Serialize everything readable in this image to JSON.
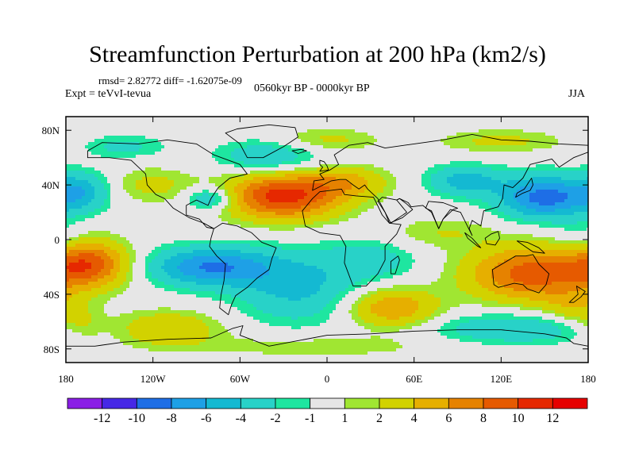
{
  "header": {
    "title": "Streamfunction Perturbation at 200 hPa (km2/s)",
    "stats": "rmsd= 2.82772 diff= -1.62075e-09",
    "experiment": "Expt = teVvI-tevua",
    "period": "0560kyr BP - 0000kyr BP",
    "season": "JJA"
  },
  "chart_data": {
    "type": "heatmap",
    "title": "Streamfunction Perturbation at 200 hPa (km2/s)",
    "xlabel": "",
    "ylabel": "",
    "xlim": [
      -180,
      180
    ],
    "ylim": [
      -90,
      90
    ],
    "x_ticks": [
      {
        "value": -180,
        "label": "180"
      },
      {
        "value": -120,
        "label": "120W"
      },
      {
        "value": -60,
        "label": "60W"
      },
      {
        "value": 0,
        "label": "0"
      },
      {
        "value": 60,
        "label": "60E"
      },
      {
        "value": 120,
        "label": "120E"
      },
      {
        "value": 180,
        "label": "180"
      }
    ],
    "y_ticks": [
      {
        "value": 80,
        "label": "80N"
      },
      {
        "value": 40,
        "label": "40N"
      },
      {
        "value": 0,
        "label": "0"
      },
      {
        "value": -40,
        "label": "40S"
      },
      {
        "value": -80,
        "label": "80S"
      }
    ],
    "colorbar": {
      "levels": [
        "-12",
        "-10",
        "-8",
        "-6",
        "-4",
        "-2",
        "-1",
        "1",
        "2",
        "4",
        "6",
        "8",
        "10",
        "12"
      ],
      "colors": [
        "#8a1ee6",
        "#4628e6",
        "#1e6ee6",
        "#1ea0e6",
        "#14b9d2",
        "#28d2c8",
        "#1ee6a0",
        "#e6e6e6",
        "#a0e632",
        "#d2d200",
        "#e6af00",
        "#e68200",
        "#e65a00",
        "#e62800",
        "#e60000"
      ]
    },
    "features": [
      {
        "lon": -30,
        "lat": 32,
        "val": 11,
        "sx": 28,
        "sy": 12
      },
      {
        "lon": 15,
        "lat": 42,
        "val": 4,
        "sx": 20,
        "sy": 8
      },
      {
        "lon": 150,
        "lat": 31,
        "val": -9,
        "sx": 22,
        "sy": 11
      },
      {
        "lon": 95,
        "lat": 43,
        "val": -5,
        "sx": 18,
        "sy": 8
      },
      {
        "lon": -80,
        "lat": 30,
        "val": -5,
        "sx": 12,
        "sy": 6
      },
      {
        "lon": -170,
        "lat": 35,
        "val": -5,
        "sx": 14,
        "sy": 10
      },
      {
        "lon": -40,
        "lat": 60,
        "val": -4,
        "sx": 25,
        "sy": 9
      },
      {
        "lon": 0,
        "lat": 73,
        "val": 2.5,
        "sx": 25,
        "sy": 6
      },
      {
        "lon": 120,
        "lat": 72,
        "val": 2.5,
        "sx": 30,
        "sy": 6
      },
      {
        "lon": -140,
        "lat": 68,
        "val": -2.5,
        "sx": 20,
        "sy": 6
      },
      {
        "lon": -120,
        "lat": 40,
        "val": 2.5,
        "sx": 20,
        "sy": 9
      },
      {
        "lon": -165,
        "lat": -18,
        "val": 9,
        "sx": 20,
        "sy": 12
      },
      {
        "lon": -80,
        "lat": -20,
        "val": -8,
        "sx": 30,
        "sy": 10
      },
      {
        "lon": -20,
        "lat": -35,
        "val": -4.5,
        "sx": 30,
        "sy": 18
      },
      {
        "lon": 30,
        "lat": -15,
        "val": -3,
        "sx": 22,
        "sy": 10
      },
      {
        "lon": 45,
        "lat": -50,
        "val": 6,
        "sx": 22,
        "sy": 10
      },
      {
        "lon": 140,
        "lat": -25,
        "val": 9,
        "sx": 30,
        "sy": 14
      },
      {
        "lon": 130,
        "lat": -65,
        "val": -4,
        "sx": 40,
        "sy": 8
      },
      {
        "lon": -110,
        "lat": -65,
        "val": 4,
        "sx": 25,
        "sy": 9
      },
      {
        "lon": 170,
        "lat": -50,
        "val": 3,
        "sx": 15,
        "sy": 10
      },
      {
        "lon": -170,
        "lat": -62,
        "val": 2.5,
        "sx": 12,
        "sy": 8
      },
      {
        "lon": -10,
        "lat": -78,
        "val": 1.8,
        "sx": 60,
        "sy": 6
      },
      {
        "lon": 80,
        "lat": 5,
        "val": 2,
        "sx": 25,
        "sy": 8
      },
      {
        "lon": 175,
        "lat": 0,
        "val": -2,
        "sx": 12,
        "sy": 10
      }
    ],
    "land": [
      {
        "name": "north-america",
        "points": [
          [
            -165,
            65
          ],
          [
            -155,
            71
          ],
          [
            -130,
            70
          ],
          [
            -110,
            73
          ],
          [
            -90,
            70
          ],
          [
            -78,
            62
          ],
          [
            -60,
            55
          ],
          [
            -55,
            48
          ],
          [
            -67,
            45
          ],
          [
            -75,
            38
          ],
          [
            -80,
            30
          ],
          [
            -82,
            25
          ],
          [
            -90,
            29
          ],
          [
            -97,
            25
          ],
          [
            -97,
            18
          ],
          [
            -88,
            15
          ],
          [
            -83,
            9
          ],
          [
            -78,
            8
          ],
          [
            -85,
            12
          ],
          [
            -95,
            16
          ],
          [
            -106,
            23
          ],
          [
            -112,
            30
          ],
          [
            -118,
            33
          ],
          [
            -124,
            40
          ],
          [
            -125,
            48
          ],
          [
            -135,
            58
          ],
          [
            -150,
            60
          ],
          [
            -165,
            60
          ]
        ]
      },
      {
        "name": "greenland",
        "points": [
          [
            -55,
            60
          ],
          [
            -44,
            60
          ],
          [
            -30,
            68
          ],
          [
            -20,
            75
          ],
          [
            -22,
            82
          ],
          [
            -40,
            84
          ],
          [
            -62,
            81
          ],
          [
            -70,
            78
          ],
          [
            -60,
            70
          ]
        ]
      },
      {
        "name": "south-america",
        "points": [
          [
            -78,
            8
          ],
          [
            -72,
            12
          ],
          [
            -62,
            10
          ],
          [
            -52,
            5
          ],
          [
            -45,
            -2
          ],
          [
            -35,
            -6
          ],
          [
            -38,
            -14
          ],
          [
            -40,
            -22
          ],
          [
            -48,
            -28
          ],
          [
            -55,
            -35
          ],
          [
            -63,
            -41
          ],
          [
            -66,
            -48
          ],
          [
            -68,
            -55
          ],
          [
            -74,
            -50
          ],
          [
            -73,
            -40
          ],
          [
            -71,
            -30
          ],
          [
            -70,
            -18
          ],
          [
            -76,
            -12
          ],
          [
            -81,
            -5
          ],
          [
            -80,
            1
          ]
        ]
      },
      {
        "name": "africa",
        "points": [
          [
            -17,
            21
          ],
          [
            -10,
            30
          ],
          [
            -5,
            35
          ],
          [
            10,
            37
          ],
          [
            12,
            33
          ],
          [
            20,
            32
          ],
          [
            32,
            31
          ],
          [
            34,
            27
          ],
          [
            38,
            18
          ],
          [
            43,
            12
          ],
          [
            51,
            11
          ],
          [
            48,
            4
          ],
          [
            40,
            -5
          ],
          [
            40,
            -15
          ],
          [
            35,
            -25
          ],
          [
            27,
            -34
          ],
          [
            18,
            -34
          ],
          [
            12,
            -17
          ],
          [
            13,
            -5
          ],
          [
            9,
            3
          ],
          [
            -5,
            5
          ],
          [
            -15,
            10
          ]
        ]
      },
      {
        "name": "eurasia",
        "points": [
          [
            -10,
            36
          ],
          [
            -9,
            43
          ],
          [
            -2,
            44
          ],
          [
            -5,
            48
          ],
          [
            2,
            51
          ],
          [
            8,
            55
          ],
          [
            5,
            62
          ],
          [
            15,
            69
          ],
          [
            28,
            71
          ],
          [
            40,
            67
          ],
          [
            60,
            70
          ],
          [
            80,
            73
          ],
          [
            100,
            77
          ],
          [
            120,
            73
          ],
          [
            140,
            72
          ],
          [
            160,
            70
          ],
          [
            180,
            69
          ],
          [
            180,
            64
          ],
          [
            170,
            60
          ],
          [
            160,
            53
          ],
          [
            155,
            59
          ],
          [
            140,
            55
          ],
          [
            135,
            45
          ],
          [
            128,
            38
          ],
          [
            122,
            40
          ],
          [
            121,
            30
          ],
          [
            118,
            24
          ],
          [
            108,
            21
          ],
          [
            106,
            10
          ],
          [
            100,
            14
          ],
          [
            98,
            8
          ],
          [
            100,
            3
          ],
          [
            92,
            20
          ],
          [
            85,
            22
          ],
          [
            80,
            15
          ],
          [
            77,
            8
          ],
          [
            72,
            20
          ],
          [
            66,
            25
          ],
          [
            58,
            24
          ],
          [
            56,
            27
          ],
          [
            50,
            30
          ],
          [
            48,
            29
          ],
          [
            55,
            20
          ],
          [
            44,
            12
          ],
          [
            35,
            30
          ],
          [
            28,
            37
          ],
          [
            26,
            40
          ],
          [
            22,
            37
          ],
          [
            18,
            40
          ],
          [
            13,
            44
          ],
          [
            9,
            44
          ],
          [
            3,
            43
          ]
        ]
      },
      {
        "name": "arabia",
        "points": [
          [
            35,
            28
          ],
          [
            40,
            20
          ],
          [
            43,
            12
          ],
          [
            52,
            16
          ],
          [
            59,
            22
          ],
          [
            55,
            26
          ],
          [
            50,
            30
          ],
          [
            48,
            29
          ],
          [
            38,
            31
          ]
        ]
      },
      {
        "name": "india",
        "points": [
          [
            68,
            23
          ],
          [
            72,
            21
          ],
          [
            77,
            8
          ],
          [
            80,
            15
          ],
          [
            87,
            22
          ],
          [
            90,
            23
          ],
          [
            80,
            27
          ],
          [
            70,
            28
          ]
        ]
      },
      {
        "name": "australia",
        "points": [
          [
            114,
            -22
          ],
          [
            122,
            -17
          ],
          [
            130,
            -12
          ],
          [
            137,
            -12
          ],
          [
            142,
            -11
          ],
          [
            146,
            -18
          ],
          [
            153,
            -25
          ],
          [
            151,
            -33
          ],
          [
            146,
            -39
          ],
          [
            138,
            -36
          ],
          [
            135,
            -33
          ],
          [
            129,
            -32
          ],
          [
            118,
            -35
          ],
          [
            115,
            -33
          ]
        ]
      },
      {
        "name": "borneo",
        "points": [
          [
            109,
            1
          ],
          [
            113,
            4
          ],
          [
            118,
            6
          ],
          [
            119,
            1
          ],
          [
            116,
            -4
          ],
          [
            110,
            -3
          ]
        ]
      },
      {
        "name": "sumatra",
        "points": [
          [
            95,
            5
          ],
          [
            100,
            1
          ],
          [
            106,
            -6
          ],
          [
            104,
            -5
          ],
          [
            97,
            1
          ]
        ]
      },
      {
        "name": "new-guinea",
        "points": [
          [
            131,
            -1
          ],
          [
            138,
            -2
          ],
          [
            146,
            -6
          ],
          [
            150,
            -10
          ],
          [
            142,
            -9
          ],
          [
            135,
            -4
          ]
        ]
      },
      {
        "name": "japan",
        "points": [
          [
            130,
            31
          ],
          [
            135,
            34
          ],
          [
            140,
            36
          ],
          [
            142,
            40
          ],
          [
            141,
            45
          ],
          [
            139,
            42
          ],
          [
            136,
            37
          ],
          [
            131,
            34
          ]
        ]
      },
      {
        "name": "madagascar",
        "points": [
          [
            44,
            -25
          ],
          [
            47,
            -25
          ],
          [
            50,
            -15
          ],
          [
            49,
            -12
          ],
          [
            44,
            -16
          ]
        ]
      },
      {
        "name": "uk",
        "points": [
          [
            -5,
            50
          ],
          [
            1,
            51
          ],
          [
            0,
            54
          ],
          [
            -2,
            57
          ],
          [
            -5,
            58
          ],
          [
            -5,
            55
          ],
          [
            -3,
            53
          ]
        ]
      },
      {
        "name": "iceland",
        "points": [
          [
            -24,
            65
          ],
          [
            -18,
            66
          ],
          [
            -14,
            65
          ],
          [
            -20,
            63
          ]
        ]
      },
      {
        "name": "new-zealand",
        "points": [
          [
            172,
            -34
          ],
          [
            178,
            -38
          ],
          [
            175,
            -42
          ],
          [
            170,
            -46
          ],
          [
            167,
            -46
          ],
          [
            173,
            -40
          ]
        ]
      },
      {
        "name": "antarctica",
        "points": [
          [
            -180,
            -78
          ],
          [
            -160,
            -78
          ],
          [
            -140,
            -75
          ],
          [
            -110,
            -73
          ],
          [
            -80,
            -72
          ],
          [
            -65,
            -65
          ],
          [
            -58,
            -63
          ],
          [
            -60,
            -70
          ],
          [
            -40,
            -78
          ],
          [
            -20,
            -74
          ],
          [
            0,
            -70
          ],
          [
            30,
            -69
          ],
          [
            60,
            -67
          ],
          [
            90,
            -66
          ],
          [
            120,
            -66
          ],
          [
            150,
            -69
          ],
          [
            165,
            -72
          ],
          [
            170,
            -76
          ],
          [
            180,
            -78
          ],
          [
            180,
            -90
          ],
          [
            -180,
            -90
          ]
        ]
      }
    ]
  }
}
